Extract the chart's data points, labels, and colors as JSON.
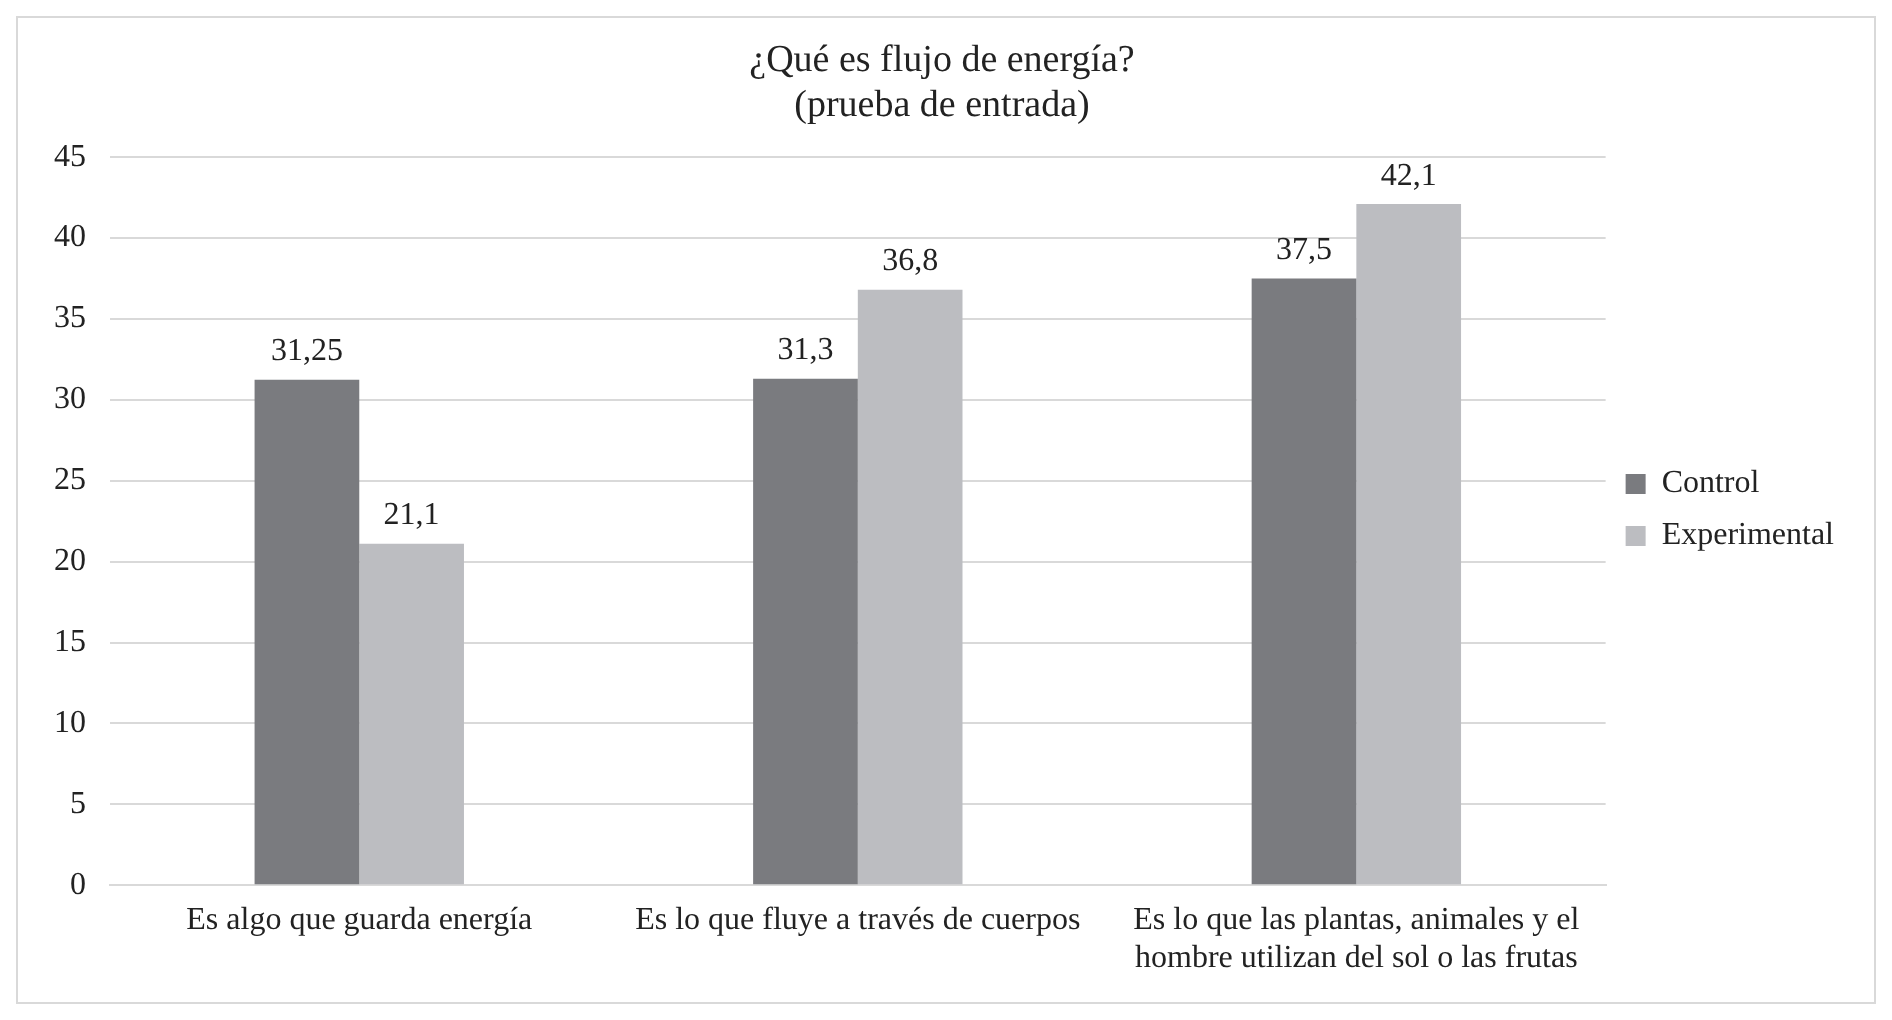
{
  "chart_data": {
    "type": "bar",
    "title": "¿Qué es flujo de energía?",
    "subtitle": "(prueba de entrada)",
    "categories": [
      "Es algo que guarda energía",
      "Es lo que fluye a través de cuerpos",
      "Es lo que las plantas, animales y el hombre utilizan del sol o las frutas"
    ],
    "series": [
      {
        "name": "Control",
        "color": "#7a7b7f",
        "values": [
          31.25,
          31.3,
          37.5
        ],
        "value_labels": [
          "31,25",
          "31,3",
          "37,5"
        ]
      },
      {
        "name": "Experimental",
        "color": "#bcbdc1",
        "values": [
          21.1,
          36.8,
          42.1
        ],
        "value_labels": [
          "21,1",
          "36,8",
          "42,1"
        ]
      }
    ],
    "ylim": [
      0,
      45
    ],
    "yticks": [
      0,
      5,
      10,
      15,
      20,
      25,
      30,
      35,
      40,
      45
    ],
    "grid": "y",
    "legend": "right"
  }
}
